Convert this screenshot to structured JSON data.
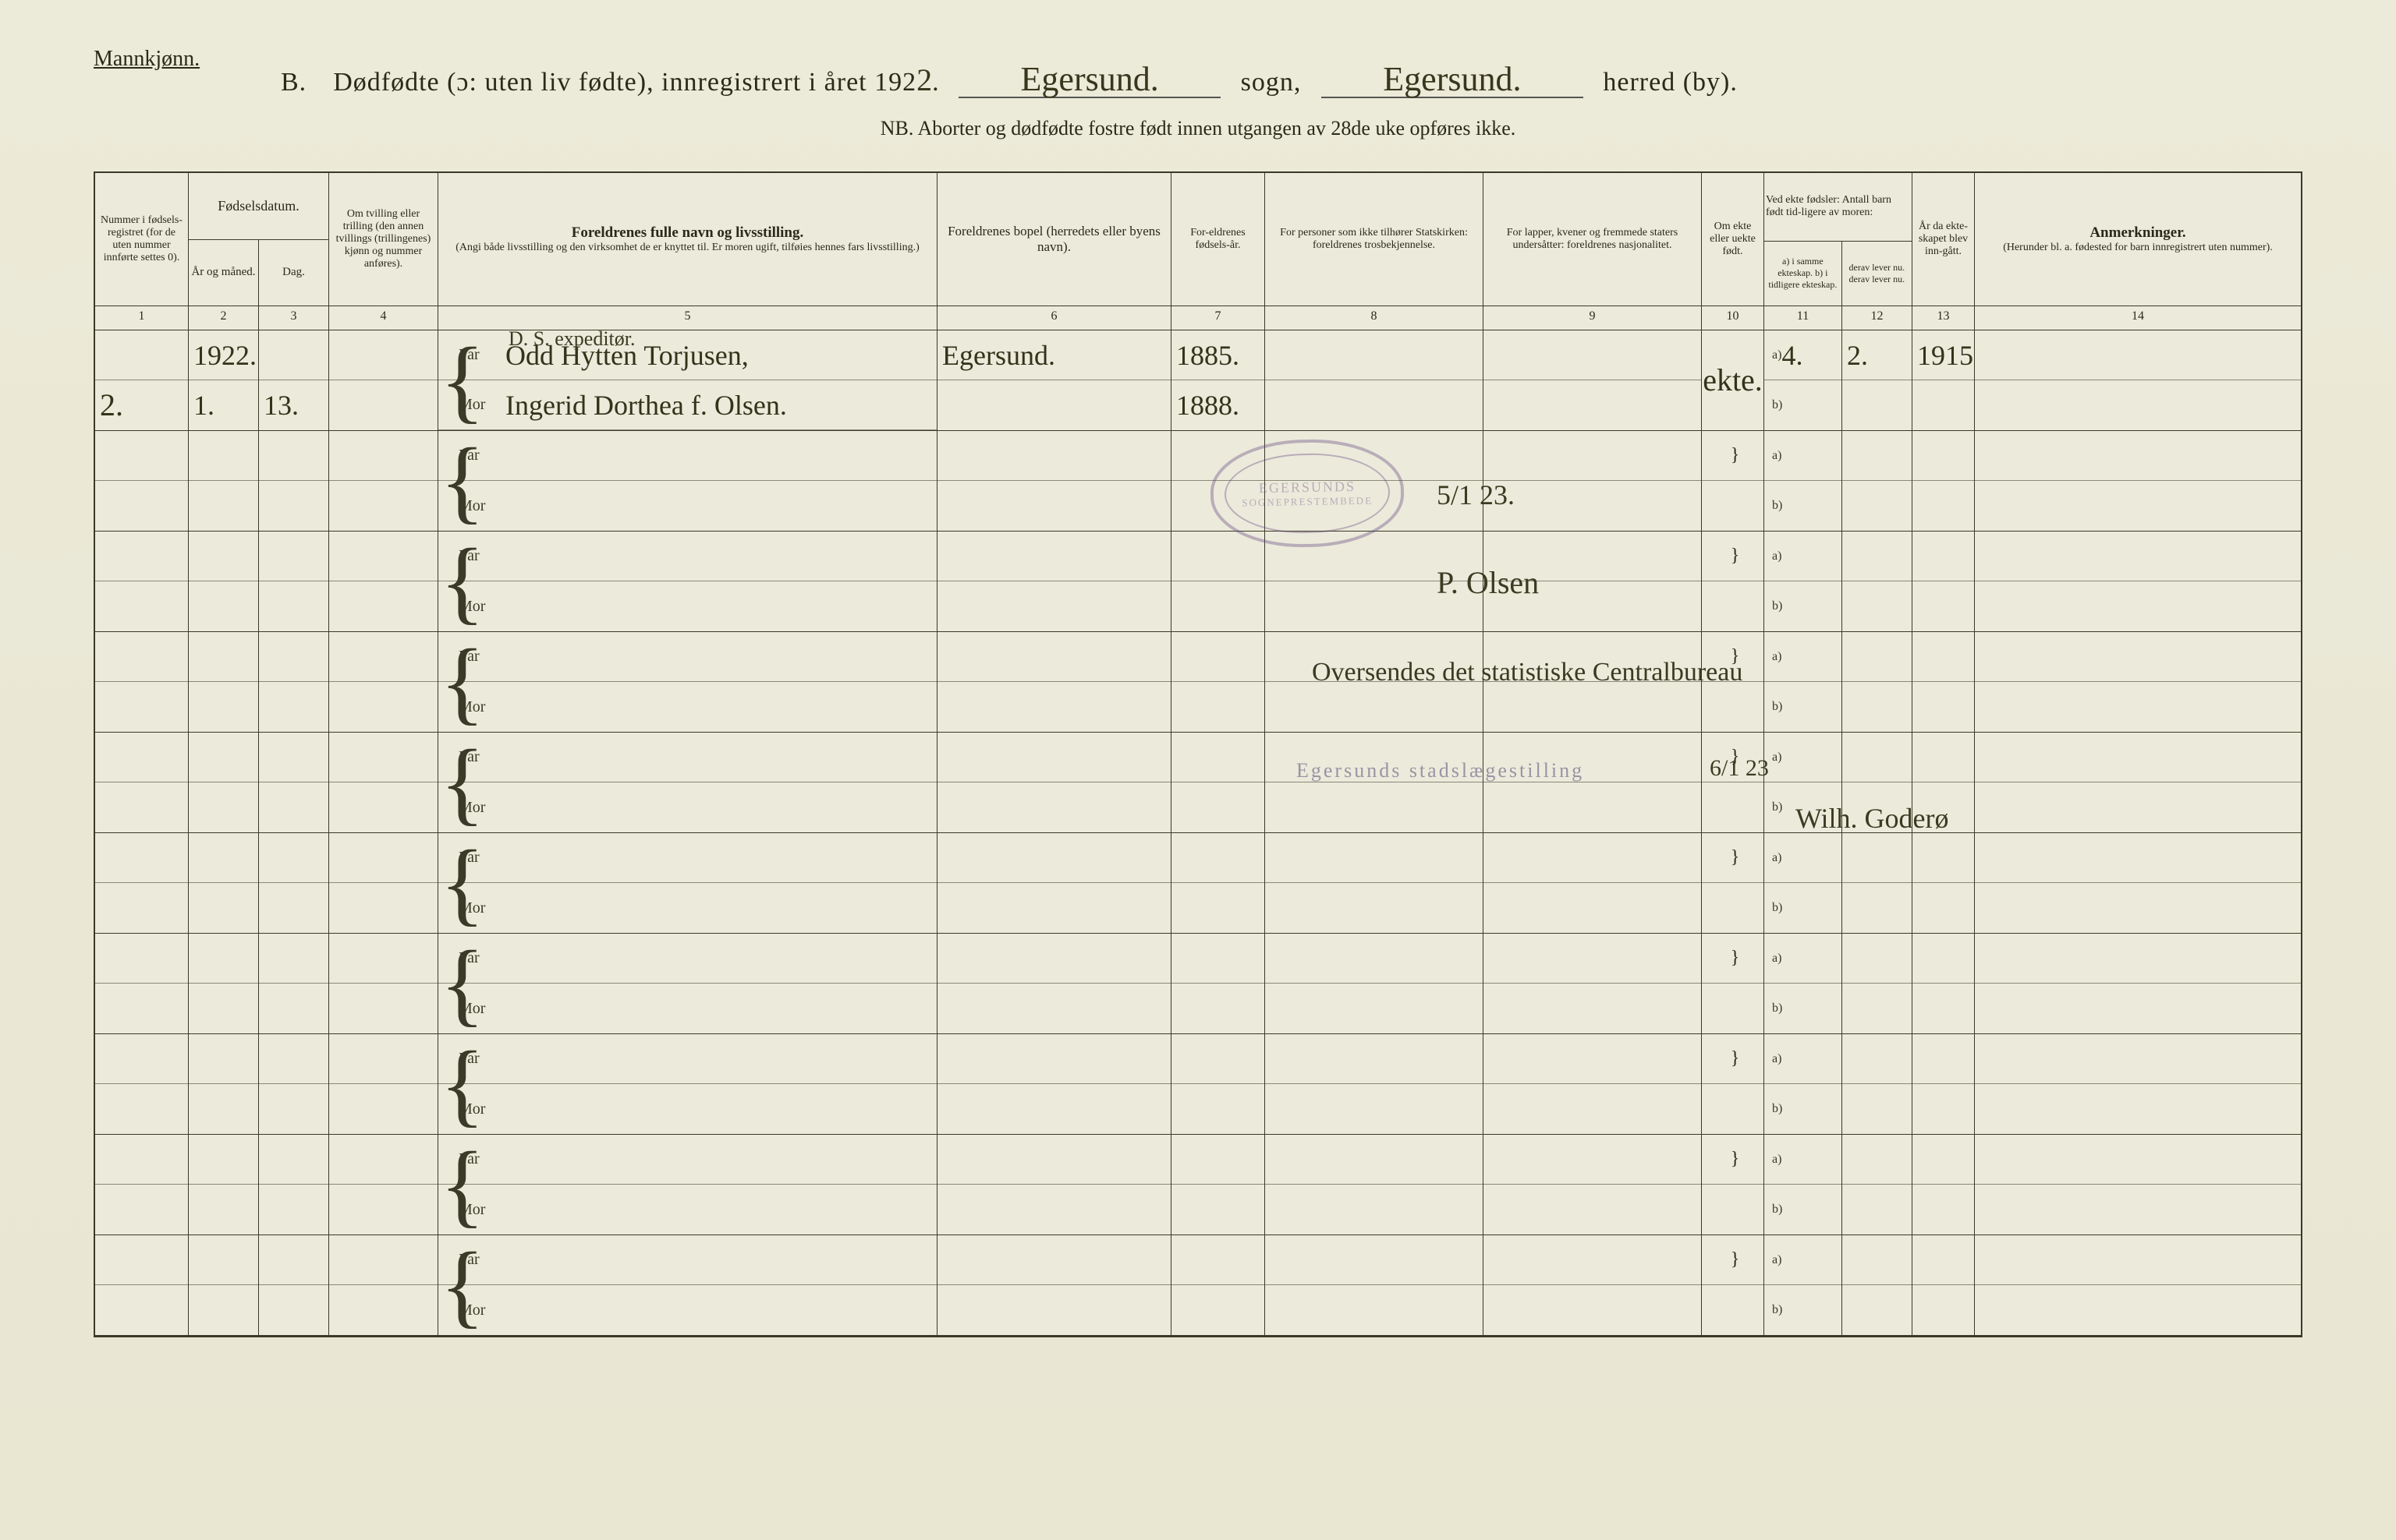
{
  "colors": {
    "paper_bg": "#e8e6d4",
    "ink": "#2a2a1a",
    "rule": "#3a3a28",
    "stamp": "rgba(90,60,120,0.35)"
  },
  "gender_label": "Mannkjønn.",
  "title": {
    "section_letter": "B.",
    "main": "Dødfødte (ɔ: uten liv fødte), innregistrert i året 192",
    "year_digit": "2",
    "sogn_hand": "Egersund.",
    "sogn_label": "sogn,",
    "herred_hand": "Egersund.",
    "herred_label": "herred (by)."
  },
  "subtitle": "NB.   Aborter og dødfødte fostre født innen utgangen av 28de uke opføres ikke.",
  "headers": {
    "c1": "Nummer i fødsels-registret (for de uten nummer innførte settes 0).",
    "c23_top": "Fødselsdatum.",
    "c2": "År og måned.",
    "c3": "Dag.",
    "c4": "Om tvilling eller trilling (den annen tvillings (trillingenes) kjønn og nummer anføres).",
    "c5_bold": "Foreldrenes fulle navn og livsstilling.",
    "c5_small": "(Angi både livsstilling og den virksomhet de er knyttet til. Er moren ugift, tilføies hennes fars livsstilling.)",
    "c6": "Foreldrenes bopel (herredets eller byens navn).",
    "c7": "For-eldrenes fødsels-år.",
    "c8": "For personer som ikke tilhører Statskirken: foreldrenes trosbekjennelse.",
    "c9": "For lapper, kvener og fremmede staters undersåtter: foreldrenes nasjonalitet.",
    "c10": "Om ekte eller uekte født.",
    "c11_13_top": "Ved ekte fødsler: Antall barn født tid-ligere av moren:",
    "c11": "a) i samme ekteskap.  b) i tidligere ekteskap.",
    "c12": "derav lever nu. derav lever nu.",
    "c13": "År da ekte-skapet blev inn-gått.",
    "c14_bold": "Anmerkninger.",
    "c14_small": "(Herunder bl. a. fødested for barn innregistrert uten nummer)."
  },
  "col_numbers": [
    "1",
    "2",
    "3",
    "4",
    "5",
    "6",
    "7",
    "8",
    "9",
    "10",
    "11",
    "12",
    "13",
    "14"
  ],
  "far_label": "Far",
  "mor_label": "Mor",
  "ab_a": "a)",
  "ab_b": "b)",
  "pre_far_line": "D. S. expeditør.",
  "entry": {
    "nummer": "2.",
    "year_month": "1922. 1.",
    "dag": "13.",
    "far_name": "Odd Hytten Torjusen,",
    "mor_name": "Ingerid Dorthea f. Olsen.",
    "bopel": "Egersund.",
    "far_year": "1885.",
    "mor_year": "1888.",
    "ekte": "ekte.",
    "barn_a": "4.",
    "derav_a": "2.",
    "ekteskap_aar": "1915."
  },
  "stamp_top": "EGERSUNDS",
  "stamp_bottom": "SOGNEPRESTEMBEDE",
  "note_date": "5/1 23.",
  "note_sign": "P. Olsen",
  "note_forward": "Oversendes det statistiske Centralbureau",
  "note_stamp_line": "Egersunds stadslægestilling",
  "note_stamp_date": "6/1 23",
  "note_sign2": "Wilh. Goderø",
  "row_count": 10
}
